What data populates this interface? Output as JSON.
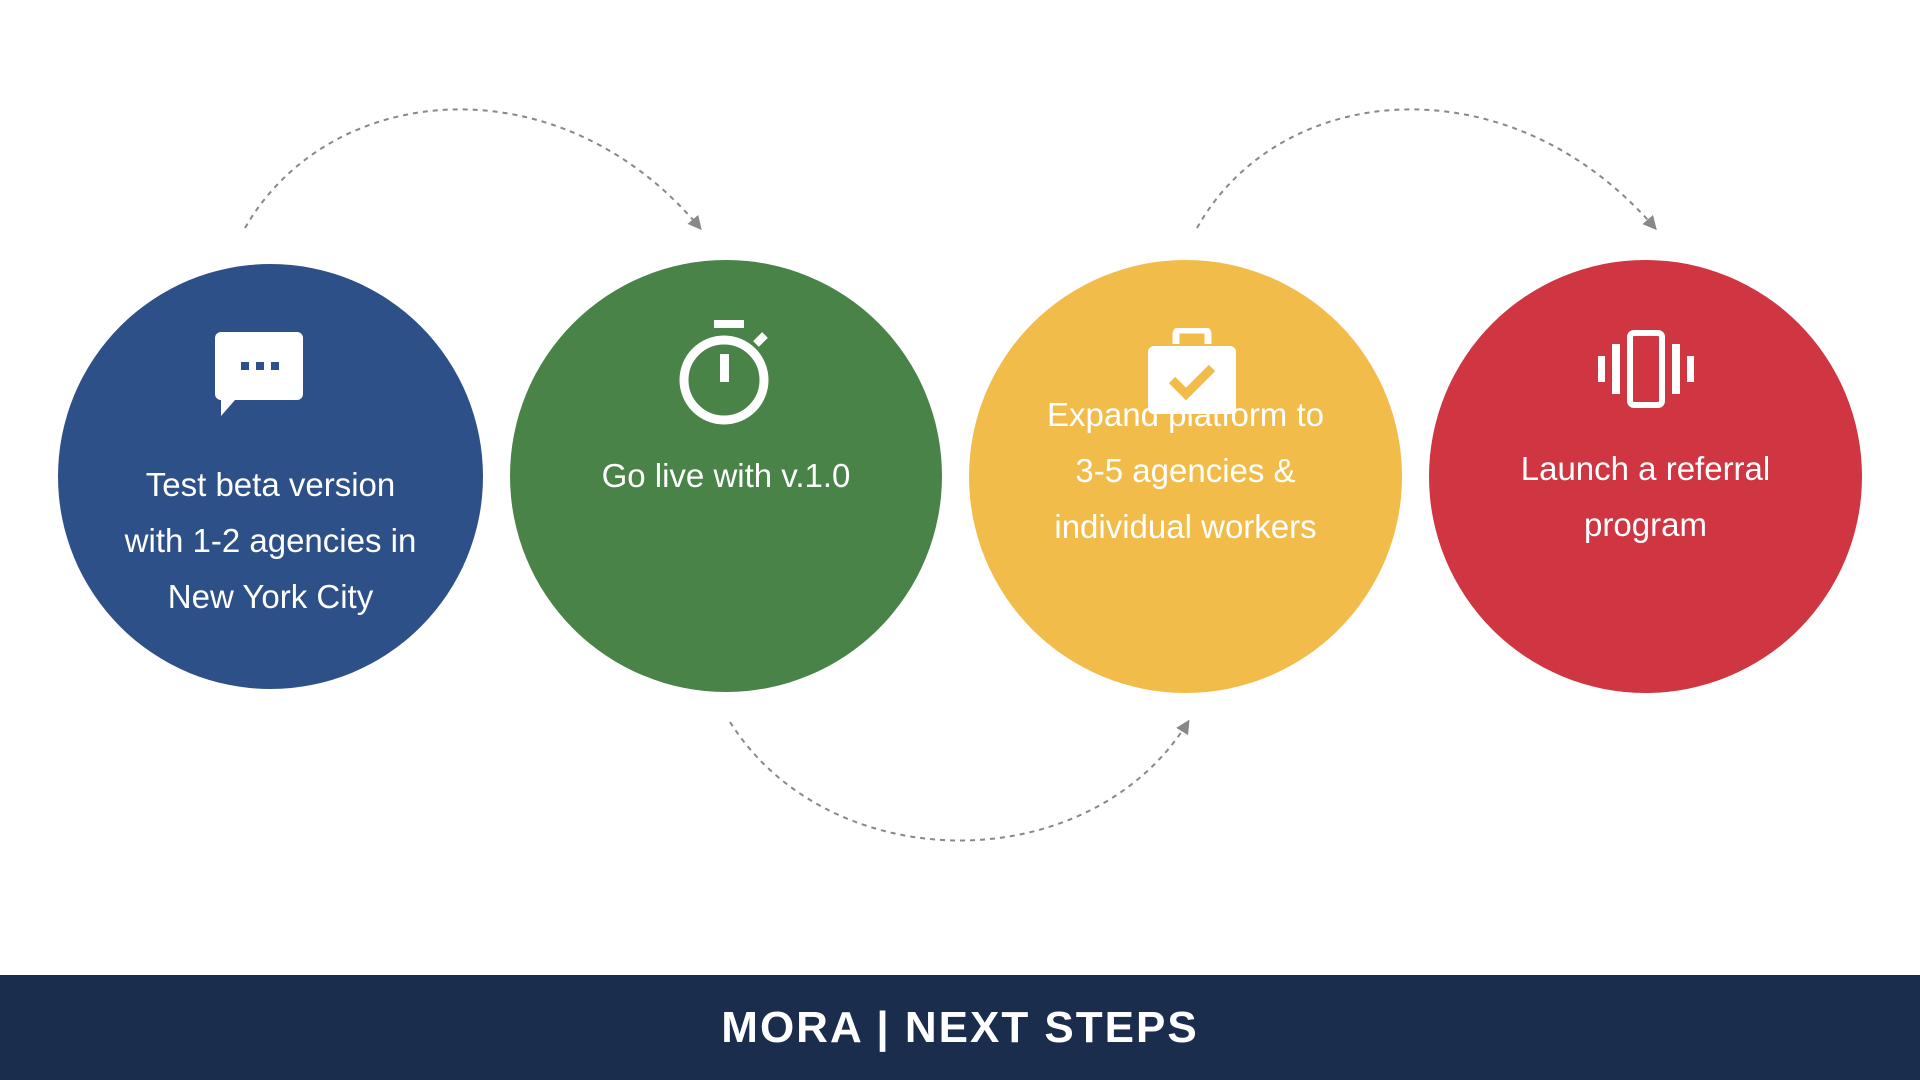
{
  "colors": {
    "step1": "#2e5088",
    "step2": "#498348",
    "step3": "#f2bc4a",
    "step4": "#d03542",
    "footer_bg": "#1b2d4d",
    "arc": "#888888"
  },
  "steps": [
    {
      "icon": "speech-bubble-icon",
      "lines": [
        "Test beta version",
        "with 1-2 agencies in",
        "New York City"
      ]
    },
    {
      "icon": "stopwatch-icon",
      "lines": [
        "Go live with v.1.0"
      ]
    },
    {
      "icon": "briefcase-check-icon",
      "lines": [
        "Expand platform to",
        "3-5 agencies &",
        "individual workers"
      ]
    },
    {
      "icon": "vibrating-phone-icon",
      "lines": [
        "Launch a referral",
        "program"
      ]
    }
  ],
  "footer": {
    "title": "MORA | NEXT STEPS"
  }
}
